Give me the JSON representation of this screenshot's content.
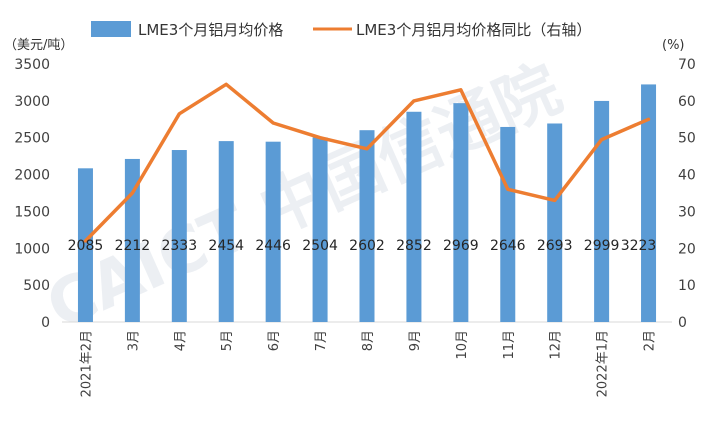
{
  "chart_data": {
    "type": "bar+line",
    "categories": [
      "2021年2月",
      "3月",
      "4月",
      "5月",
      "6月",
      "7月",
      "8月",
      "9月",
      "10月",
      "11月",
      "12月",
      "2022年1月",
      "2月"
    ],
    "series": [
      {
        "name": "LME3个月铝月均价格",
        "type": "bar",
        "axis": "left",
        "color": "#5b9bd5",
        "values": [
          2085,
          2212,
          2333,
          2454,
          2446,
          2504,
          2602,
          2852,
          2969,
          2646,
          2693,
          2999,
          3223
        ]
      },
      {
        "name": "LME3个月铝月均价格同比（右轴）",
        "type": "line",
        "axis": "right",
        "color": "#ed7d31",
        "values": [
          22,
          35,
          56.5,
          64.5,
          54,
          50,
          47,
          60,
          63,
          36,
          33,
          49.5,
          55
        ]
      }
    ],
    "y_left": {
      "unit": "（美元/吨）",
      "ticks": [
        "0",
        "500",
        "1000",
        "1500",
        "2000",
        "2500",
        "3000",
        "3500"
      ],
      "range": [
        0,
        3500
      ]
    },
    "y_right": {
      "unit": "(%)",
      "ticks": [
        "0",
        "10",
        "20",
        "30",
        "40",
        "50",
        "60",
        "70"
      ],
      "range": [
        0,
        70
      ]
    },
    "data_labels": [
      "2085",
      "2212",
      "2333",
      "2454",
      "2446",
      "2504",
      "2602",
      "2852",
      "2969",
      "2646",
      "2693",
      "2999",
      "3223"
    ],
    "legend_position": "top",
    "grid": false,
    "watermark": "CAICT 中国信通院"
  }
}
